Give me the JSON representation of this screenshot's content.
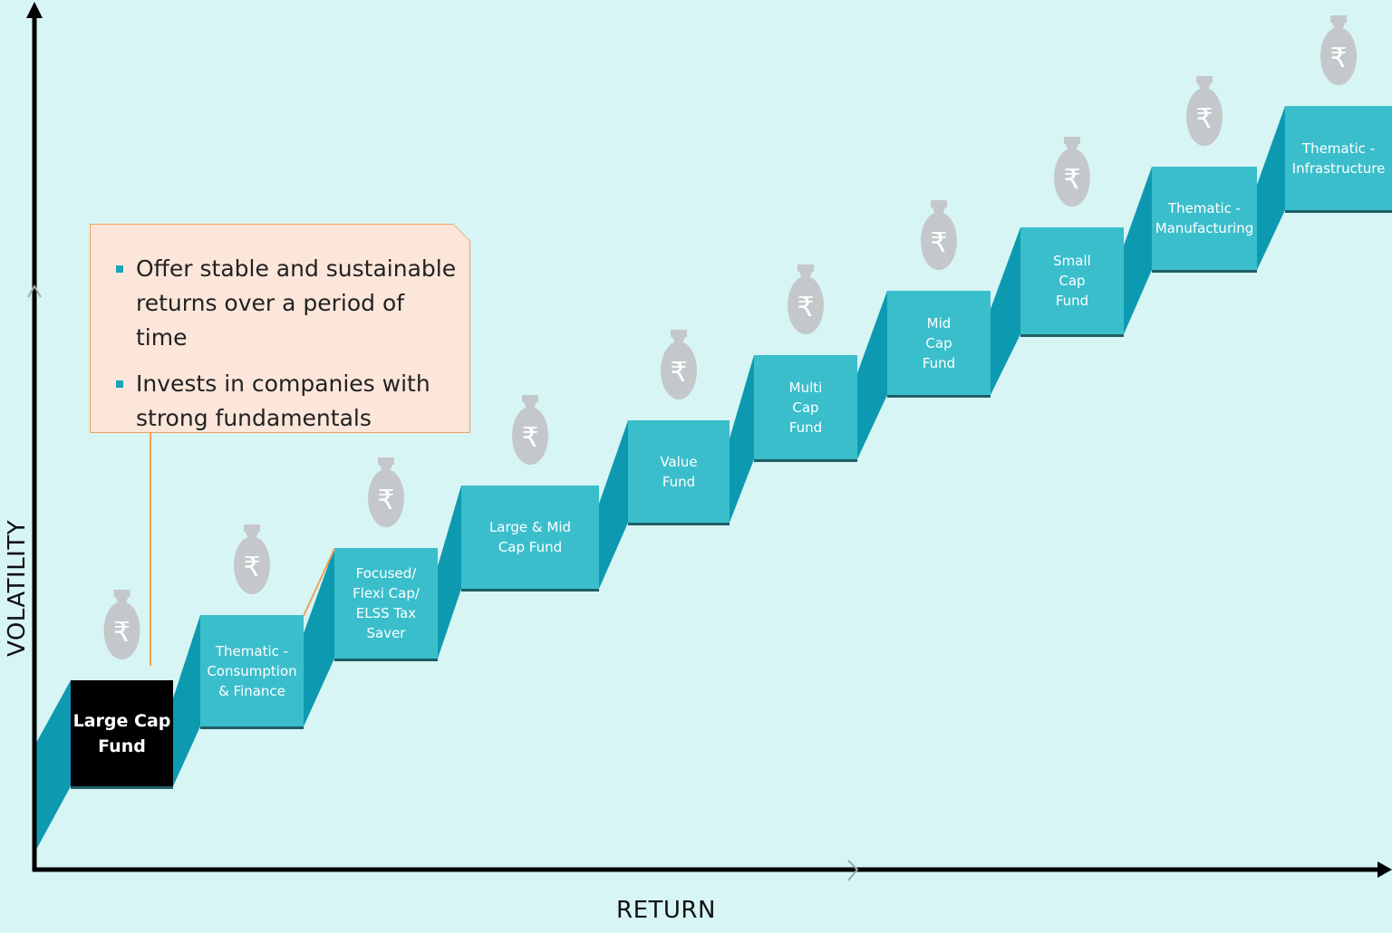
{
  "axes": {
    "x_label": "RETURN",
    "y_label": "VOLATILITY"
  },
  "callout": {
    "points": [
      "Offer stable and sustainable returns over a period of time",
      "Invests in companies with strong fundamentals"
    ]
  },
  "steps": [
    {
      "label": "Large Cap\nFund",
      "active": true
    },
    {
      "label": "Thematic -\nConsumption\n& Finance",
      "active": false
    },
    {
      "label": "Focused/\nFlexi Cap/\nELSS Tax\nSaver",
      "active": false
    },
    {
      "label": "Large & Mid\nCap Fund",
      "active": false
    },
    {
      "label": "Value\nFund",
      "active": false
    },
    {
      "label": "Multi\nCap\nFund",
      "active": false
    },
    {
      "label": "Mid\nCap\nFund",
      "active": false
    },
    {
      "label": "Small\nCap\nFund",
      "active": false
    },
    {
      "label": "Thematic -\nManufacturing",
      "active": false
    },
    {
      "label": "Thematic -\nInfrastructure",
      "active": false
    }
  ],
  "money_bag_symbol": "₹",
  "colors": {
    "background": "#d7f5f4",
    "step_face": "#3bbecc",
    "step_side": "#0d9ab0",
    "step_active": "#000000",
    "callout_fill": "#fce6da",
    "callout_border": "#f0a05a",
    "bag": "#c4c8ca",
    "axis": "#000000"
  },
  "icons": {
    "step_icon": "rupee-money-bag-icon",
    "bullet_icon": "square-bullet-icon"
  }
}
